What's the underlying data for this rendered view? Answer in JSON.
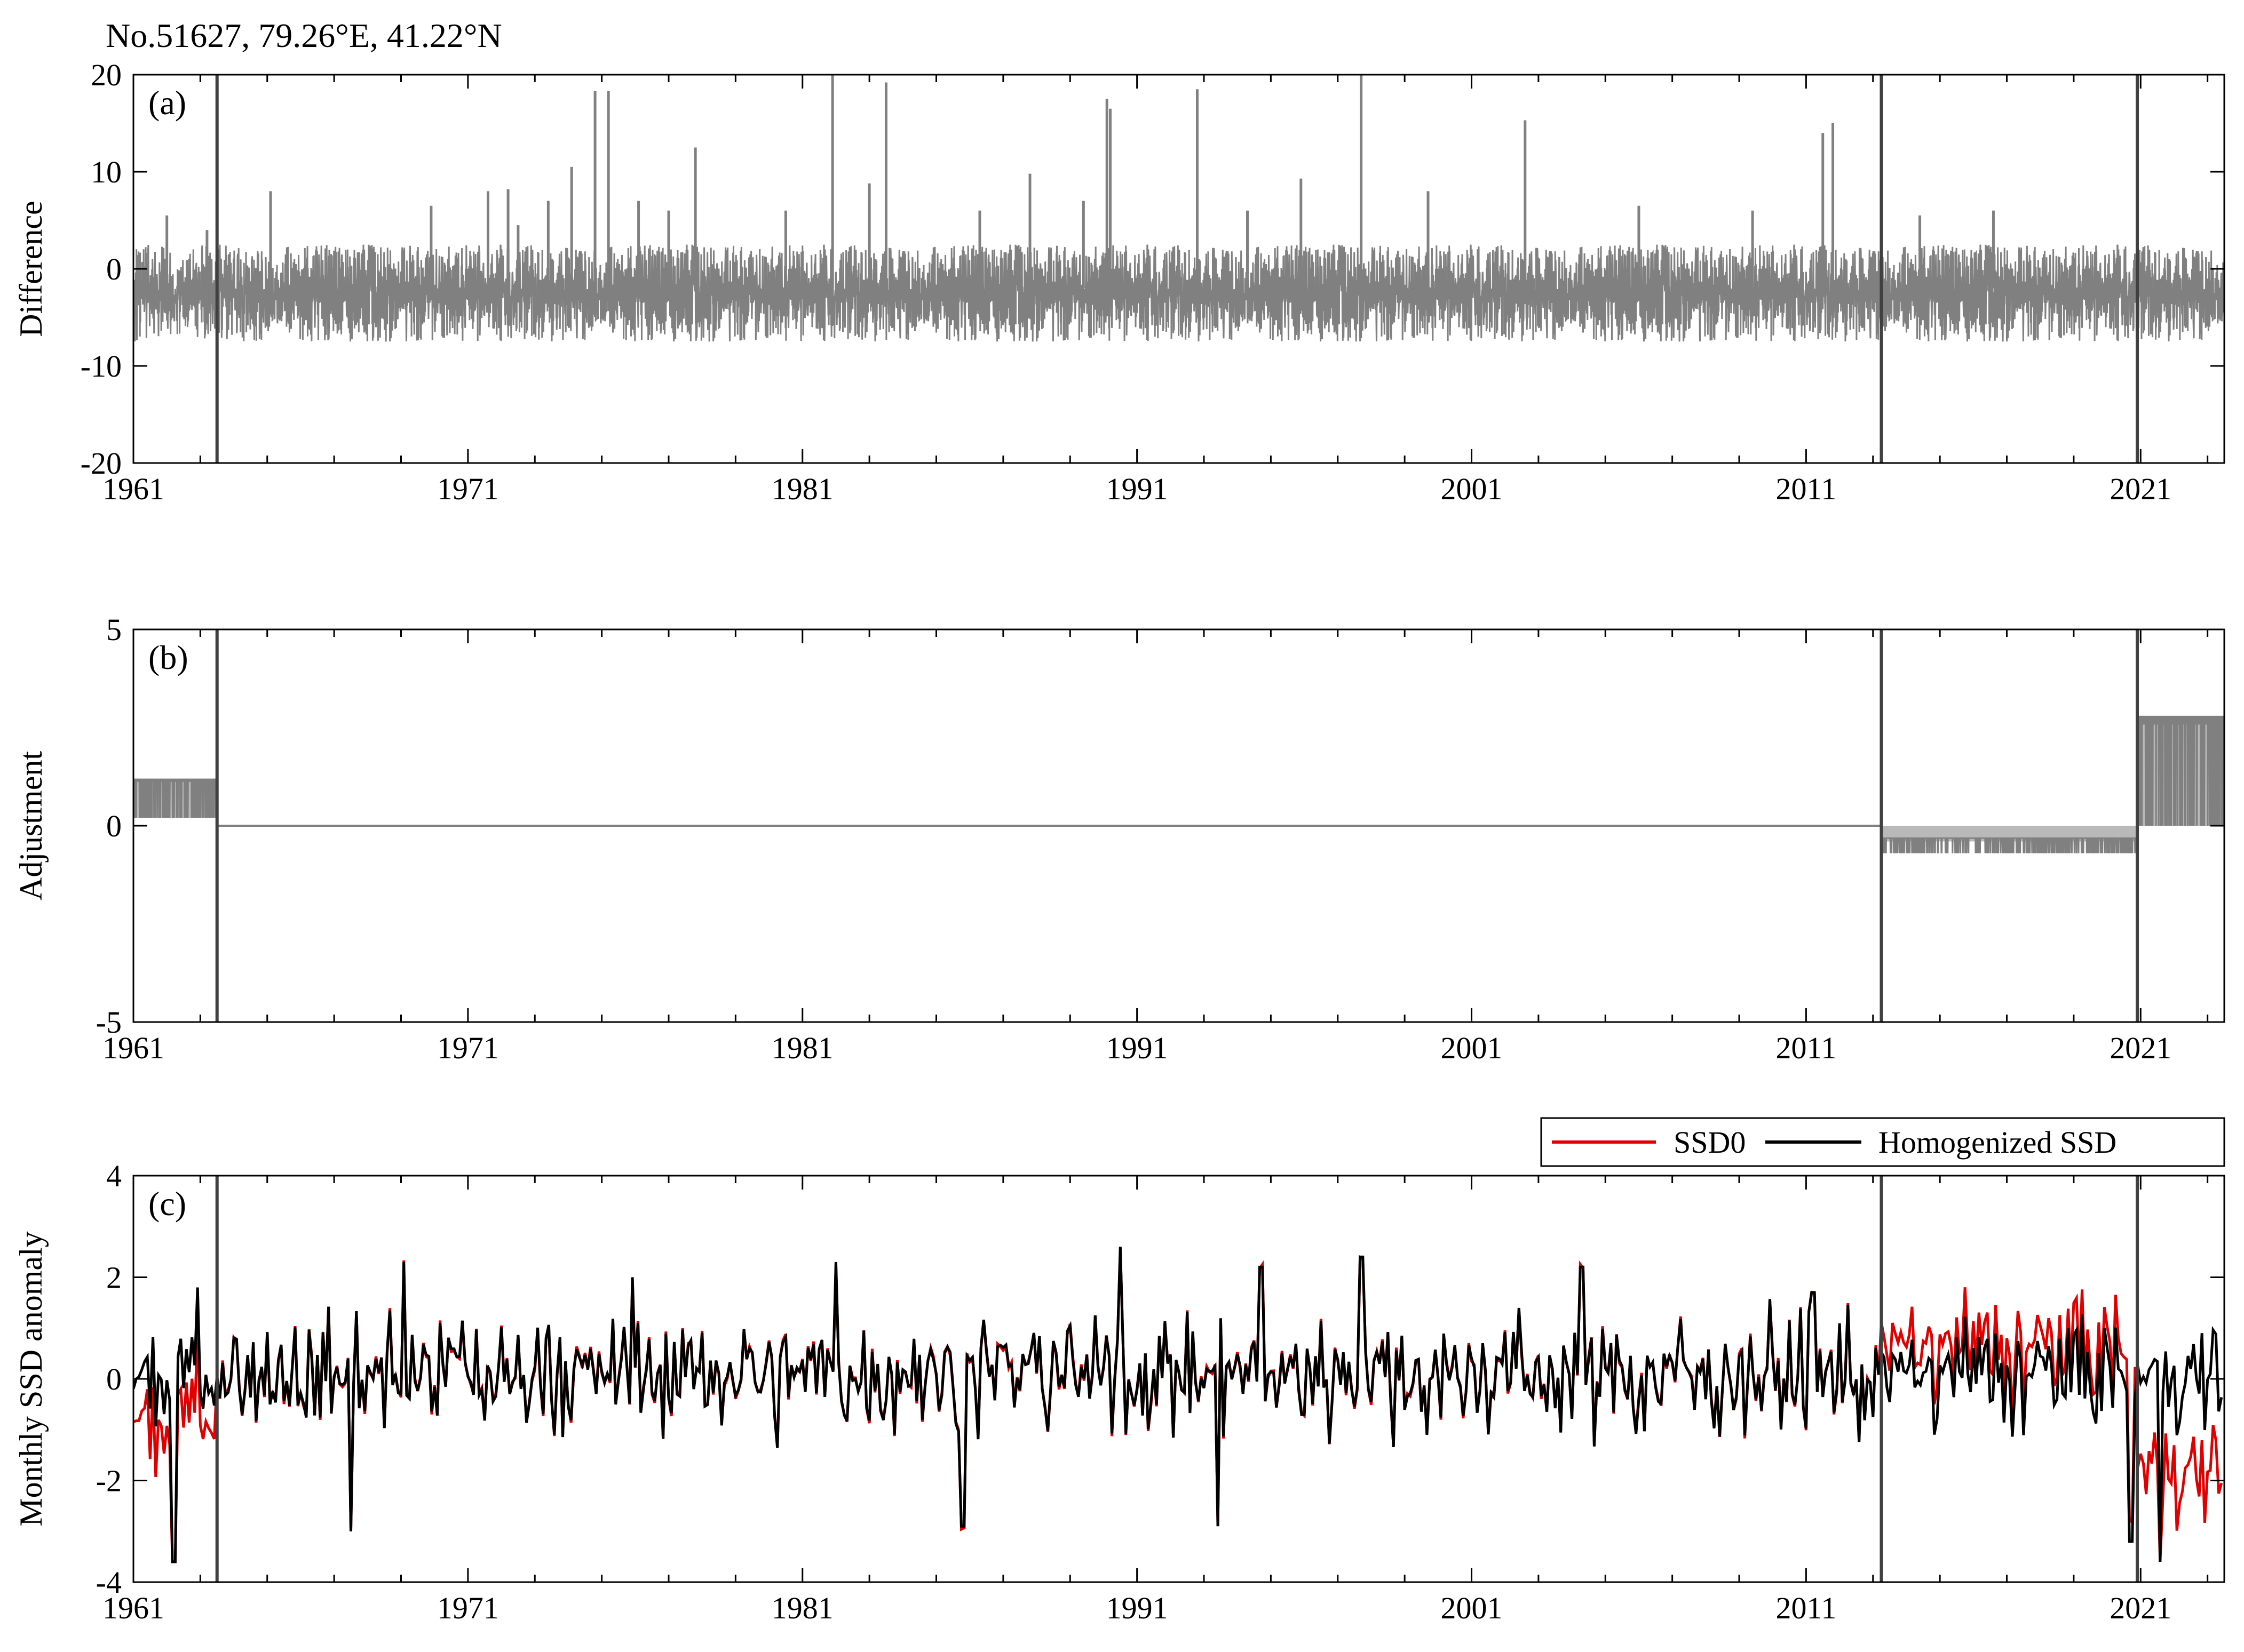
{
  "figure": {
    "title": "No.51627, 79.26°E, 41.22°N"
  },
  "chart_data": [
    {
      "panel": "(a)",
      "type": "line",
      "ylabel": "Difference",
      "xlim": [
        1961,
        2023.5
      ],
      "ylim": [
        -20,
        20
      ],
      "xticks": [
        1961,
        1971,
        1981,
        1991,
        2001,
        2011,
        2021
      ],
      "yticks": [
        -20,
        -10,
        0,
        10,
        20
      ],
      "breakpoints": [
        1963.5,
        2013.25,
        2020.9
      ],
      "series": [
        {
          "color": "#808080",
          "description_of_form": "daily difference series, dense noise",
          "typical_range": [
            -10,
            5
          ],
          "spikes": [
            {
              "x": 1962.0,
              "y": 5.5
            },
            {
              "x": 1963.2,
              "y": 4.0
            },
            {
              "x": 1965.1,
              "y": 8.0
            },
            {
              "x": 1969.9,
              "y": 6.5
            },
            {
              "x": 1971.6,
              "y": 8.0
            },
            {
              "x": 1972.2,
              "y": 8.2
            },
            {
              "x": 1972.5,
              "y": 4.5
            },
            {
              "x": 1973.4,
              "y": 7.0
            },
            {
              "x": 1974.1,
              "y": 10.5
            },
            {
              "x": 1974.8,
              "y": 18.3
            },
            {
              "x": 1975.2,
              "y": 18.3
            },
            {
              "x": 1976.1,
              "y": 7.0
            },
            {
              "x": 1977.0,
              "y": 6.0
            },
            {
              "x": 1977.8,
              "y": 12.5
            },
            {
              "x": 1980.5,
              "y": 6.0
            },
            {
              "x": 1981.9,
              "y": 20.0
            },
            {
              "x": 1983.0,
              "y": 8.8
            },
            {
              "x": 1983.5,
              "y": 19.2
            },
            {
              "x": 1986.3,
              "y": 6.0
            },
            {
              "x": 1987.8,
              "y": 9.8
            },
            {
              "x": 1989.4,
              "y": 7.0
            },
            {
              "x": 1990.1,
              "y": 17.5
            },
            {
              "x": 1990.2,
              "y": 16.5
            },
            {
              "x": 1992.8,
              "y": 18.5
            },
            {
              "x": 1994.3,
              "y": 6.0
            },
            {
              "x": 1995.9,
              "y": 9.3
            },
            {
              "x": 1997.7,
              "y": 20.0
            },
            {
              "x": 1999.7,
              "y": 8.0
            },
            {
              "x": 2002.6,
              "y": 15.3
            },
            {
              "x": 2006.0,
              "y": 6.5
            },
            {
              "x": 2009.4,
              "y": 6.0
            },
            {
              "x": 2011.5,
              "y": 14.0
            },
            {
              "x": 2011.8,
              "y": 15.0
            },
            {
              "x": 2014.4,
              "y": 5.5
            },
            {
              "x": 2016.6,
              "y": 6.0
            }
          ]
        }
      ]
    },
    {
      "panel": "(b)",
      "type": "line",
      "ylabel": "Adjustment",
      "xlim": [
        1961,
        2023.5
      ],
      "ylim": [
        -5,
        5
      ],
      "xticks": [
        1961,
        1971,
        1981,
        1991,
        2001,
        2011,
        2021
      ],
      "yticks": [
        -5,
        0,
        5
      ],
      "breakpoints": [
        1963.5,
        2013.25,
        2020.9
      ],
      "series": [
        {
          "color": "#808080",
          "segments": [
            {
              "x_start": 1961.0,
              "x_end": 1963.5,
              "values_between": [
                0.2,
                1.2
              ]
            },
            {
              "x_start": 1963.5,
              "x_end": 2013.25,
              "values_between": [
                0.0,
                0.0
              ]
            },
            {
              "x_start": 2013.25,
              "x_end": 2020.9,
              "values_between": [
                -0.7,
                -0.3
              ]
            },
            {
              "x_start": 2020.9,
              "x_end": 2023.5,
              "values_between": [
                0.0,
                2.8
              ]
            }
          ]
        }
      ]
    },
    {
      "panel": "(c)",
      "type": "line",
      "ylabel": "Monthly SSD anomaly",
      "xlim": [
        1961,
        2023.5
      ],
      "ylim": [
        -4,
        4
      ],
      "xticks": [
        1961,
        1971,
        1981,
        1991,
        2001,
        2011,
        2021
      ],
      "yticks": [
        -4,
        -2,
        0,
        2,
        4
      ],
      "breakpoints": [
        1963.5,
        2013.25,
        2020.9
      ],
      "legend": {
        "placement": "top-right"
      },
      "series": [
        {
          "name": "SSD0",
          "color": "#e00000",
          "description_of_form": "monthly anomaly before homogenization"
        },
        {
          "name": "Homogenized SSD",
          "color": "#000000",
          "description_of_form": "monthly anomaly after homogenization"
        }
      ],
      "highlights": [
        {
          "x": 1962.2,
          "y": -3.6
        },
        {
          "x": 1962.9,
          "y": 1.8
        },
        {
          "x": 1969.1,
          "y": 2.3
        },
        {
          "x": 1967.5,
          "y": -3.0
        },
        {
          "x": 1975.9,
          "y": 2.0
        },
        {
          "x": 1982.0,
          "y": 2.3
        },
        {
          "x": 1985.8,
          "y": -2.9
        },
        {
          "x": 1990.5,
          "y": 2.6
        },
        {
          "x": 1994.7,
          "y": 2.2
        },
        {
          "x": 1993.4,
          "y": -2.9
        },
        {
          "x": 1997.7,
          "y": 2.4
        },
        {
          "x": 2004.3,
          "y": 2.2
        },
        {
          "x": 2011.2,
          "y": 1.7
        },
        {
          "x": 2020.7,
          "y": -3.2
        },
        {
          "x": 2021.6,
          "y": -3.6
        }
      ]
    }
  ]
}
